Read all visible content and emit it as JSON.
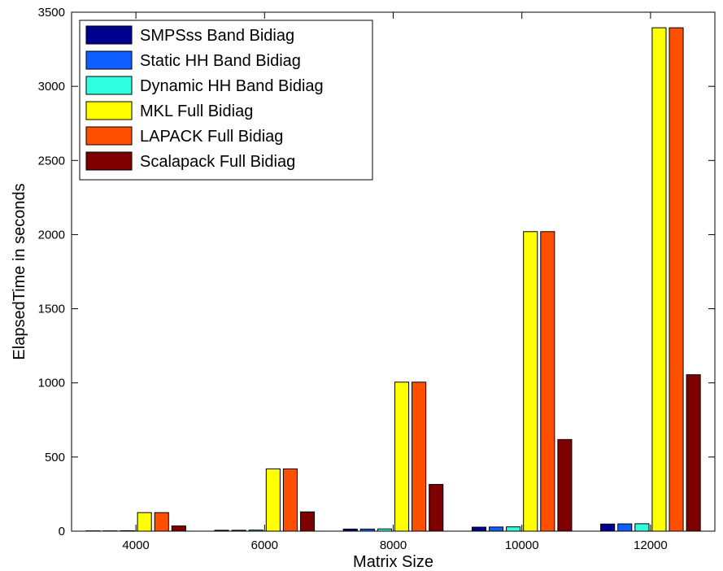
{
  "chart_data": {
    "type": "bar",
    "xlabel": "Matrix Size",
    "ylabel": "ElapsedTime in seconds",
    "categories": [
      "4000",
      "6000",
      "8000",
      "10000",
      "12000"
    ],
    "ylim": [
      0,
      3500
    ],
    "yticks": [
      0,
      500,
      1000,
      1500,
      2000,
      2500,
      3000,
      3500
    ],
    "legend_position": "top-left",
    "grid": false,
    "series": [
      {
        "name": "SMPSss Band Bidiag",
        "color": "#00008f",
        "values": [
          2,
          6,
          14,
          27,
          48
        ]
      },
      {
        "name": "Static HH Band Bidiag",
        "color": "#0f5fff",
        "values": [
          2,
          6,
          14,
          28,
          49
        ]
      },
      {
        "name": "Dynamic HH Band Bidiag",
        "color": "#2fffdf",
        "values": [
          3,
          7,
          15,
          29,
          50
        ]
      },
      {
        "name": "MKL Full Bidiag",
        "color": "#ffff00",
        "values": [
          125,
          420,
          1005,
          2020,
          3395
        ]
      },
      {
        "name": "LAPACK Full Bidiag",
        "color": "#ff4f00",
        "values": [
          125,
          420,
          1005,
          2020,
          3395
        ]
      },
      {
        "name": "Scalapack Full Bidiag",
        "color": "#7f0000",
        "values": [
          35,
          130,
          315,
          618,
          1055
        ]
      }
    ]
  }
}
